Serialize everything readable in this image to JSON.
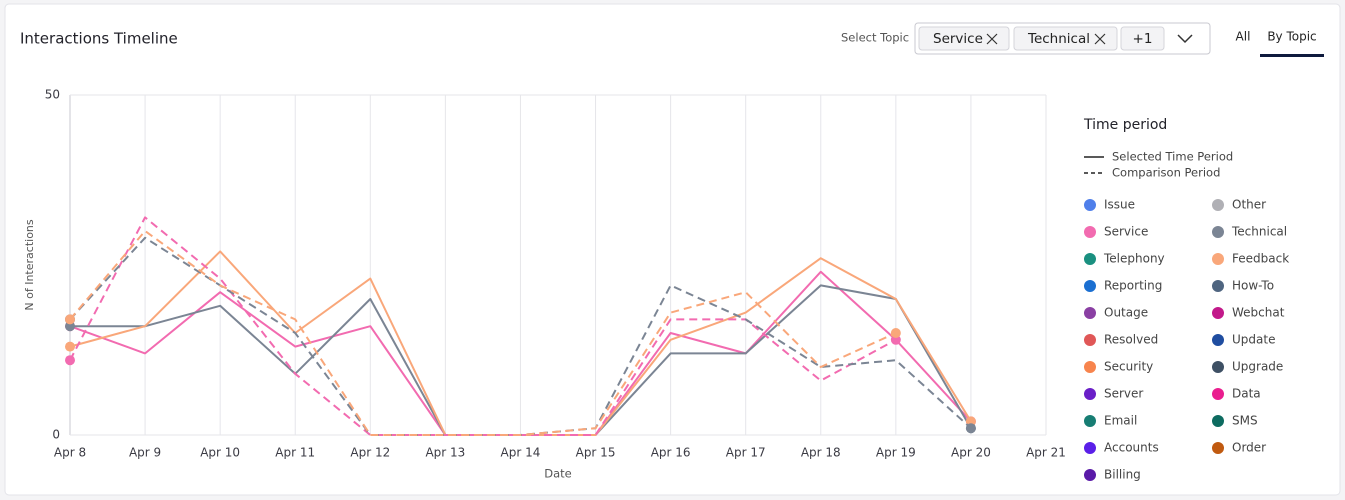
{
  "ui": {
    "title": "Interactions Timeline",
    "select_label": "Select Topic",
    "chips": [
      "Service",
      "Technical",
      "+1"
    ],
    "tabs": [
      "All",
      "By Topic"
    ],
    "active_tab": 1
  },
  "chart_data": {
    "type": "line",
    "xlabel": "Date",
    "ylabel": "N of Interactions",
    "categories": [
      "Apr 8",
      "Apr 9",
      "Apr 10",
      "Apr 11",
      "Apr 12",
      "Apr 13",
      "Apr 14",
      "Apr 15",
      "Apr 16",
      "Apr 17",
      "Apr 18",
      "Apr 19",
      "Apr 20",
      "Apr 21"
    ],
    "ylim": [
      0,
      50
    ],
    "yticks": [
      0,
      50
    ],
    "grid": true,
    "series": [
      {
        "name": "Service",
        "color": "#f26bb0",
        "dashed": false,
        "values": [
          16,
          12,
          21,
          13,
          16,
          0,
          0,
          0,
          15,
          12,
          24,
          14,
          2,
          null
        ]
      },
      {
        "name": "Technical",
        "color": "#7b8594",
        "dashed": false,
        "values": [
          16,
          16,
          19,
          9,
          20,
          0,
          0,
          0,
          12,
          12,
          22,
          20,
          1,
          null
        ]
      },
      {
        "name": "Feedback",
        "color": "#f9a77a",
        "dashed": false,
        "values": [
          13,
          16,
          27,
          15,
          23,
          0,
          0,
          0,
          14,
          18,
          26,
          20,
          2,
          null
        ]
      },
      {
        "name": "Service",
        "color": "#f26bb0",
        "dashed": true,
        "values": [
          11,
          32,
          23,
          9,
          0,
          0,
          0,
          0,
          17,
          17,
          8,
          14,
          null,
          null
        ]
      },
      {
        "name": "Technical",
        "color": "#7b8594",
        "dashed": true,
        "values": [
          17,
          29,
          22,
          15,
          0,
          0,
          0,
          1,
          22,
          17,
          10,
          11,
          1,
          null
        ]
      },
      {
        "name": "Feedback",
        "color": "#f9a77a",
        "dashed": true,
        "values": [
          17,
          30,
          22,
          17,
          0,
          0,
          0,
          1,
          18,
          21,
          10,
          15,
          null,
          null
        ]
      }
    ],
    "legend": {
      "title": "Time period",
      "periods": [
        "Selected Time Period",
        "Comparison Period"
      ],
      "topics": [
        {
          "name": "Issue",
          "color": "#4f7fea"
        },
        {
          "name": "Other",
          "color": "#b0b0b5"
        },
        {
          "name": "Service",
          "color": "#f26bb0"
        },
        {
          "name": "Technical",
          "color": "#7b8594"
        },
        {
          "name": "Telephony",
          "color": "#1a9080"
        },
        {
          "name": "Feedback",
          "color": "#f9a77a"
        },
        {
          "name": "Reporting",
          "color": "#1b6fd1"
        },
        {
          "name": "How-To",
          "color": "#4f6580"
        },
        {
          "name": "Outage",
          "color": "#8a3fa3"
        },
        {
          "name": "Webchat",
          "color": "#c2198a"
        },
        {
          "name": "Resolved",
          "color": "#e05757"
        },
        {
          "name": "Update",
          "color": "#1f4da0"
        },
        {
          "name": "Security",
          "color": "#f7844d"
        },
        {
          "name": "Upgrade",
          "color": "#3e5064"
        },
        {
          "name": "Server",
          "color": "#6a1fc8"
        },
        {
          "name": "Data",
          "color": "#ea1e8f"
        },
        {
          "name": "Email",
          "color": "#177d73"
        },
        {
          "name": "SMS",
          "color": "#0d6b60"
        },
        {
          "name": "Accounts",
          "color": "#5a1fe8"
        },
        {
          "name": "Order",
          "color": "#c05a10"
        },
        {
          "name": "Billing",
          "color": "#5a1aa8"
        }
      ]
    }
  }
}
